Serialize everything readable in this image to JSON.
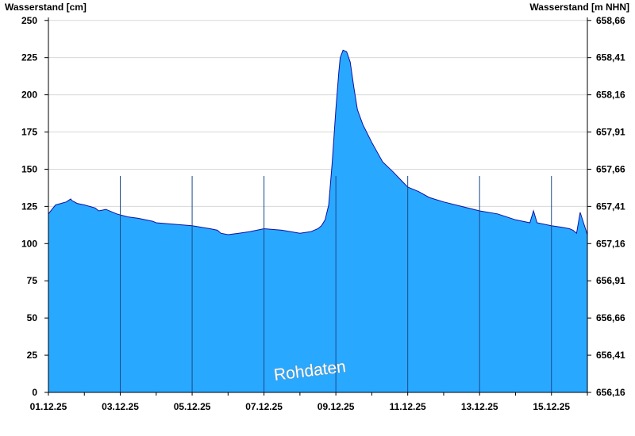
{
  "chart_data": {
    "type": "area",
    "ylabel_left": "Wasserstand [cm]",
    "ylabel_right": "Wasserstand [m NHN]",
    "watermark": "Rohdaten",
    "ylim": [
      0,
      252
    ],
    "y_ticks_left": [
      "0",
      "25",
      "50",
      "75",
      "100",
      "125",
      "150",
      "175",
      "200",
      "225",
      "250"
    ],
    "y_ticks_right": [
      "656,16",
      "656,41",
      "656,66",
      "656,91",
      "657,16",
      "657,41",
      "657,66",
      "657,91",
      "658,16",
      "658,41",
      "658,66"
    ],
    "x_range_days": [
      0,
      15
    ],
    "x_ticks": [
      "01.12.25",
      "03.12.25",
      "05.12.25",
      "07.12.25",
      "09.12.25",
      "11.12.25",
      "13.12.25",
      "15.12.25"
    ],
    "grid": true,
    "colors": {
      "fill": "#29a8ff",
      "line": "#1010a0",
      "grid": "#d8d8d8",
      "gridline_vertical": "#1a4a8a"
    },
    "series": [
      {
        "x": [
          0,
          0.1,
          0.2,
          0.35,
          0.5,
          0.65,
          0.62,
          0.8,
          1.0,
          1.3,
          1.6,
          1.4,
          1.9,
          2.2,
          2.5,
          2.9,
          3.0,
          3.5,
          4.0,
          4.5,
          4.7,
          4.8,
          5.0,
          5.3,
          5.6,
          6.0,
          6.5,
          7.0,
          7.3,
          7.5,
          7.6,
          7.7,
          7.8,
          7.9,
          8.0,
          8.08,
          8.12,
          8.2,
          8.3,
          8.4,
          8.5,
          8.6,
          8.75,
          9.0,
          9.3,
          9.6,
          9.8,
          10.0,
          10.3,
          10.6,
          11.0,
          11.5,
          12.0,
          12.5,
          13.0,
          13.4,
          13.5,
          13.6,
          14.0,
          14.3,
          14.5,
          14.6,
          14.7,
          14.8,
          15.0
        ],
        "y": [
          120,
          123,
          126,
          127,
          128,
          129,
          130,
          127,
          126,
          124,
          123,
          122,
          120,
          118,
          117,
          115,
          114,
          113,
          112,
          110,
          109,
          107,
          106,
          107,
          108,
          110,
          109,
          107,
          108,
          110,
          112,
          116,
          126,
          155,
          190,
          215,
          225,
          230,
          229,
          222,
          205,
          190,
          180,
          168,
          155,
          148,
          143,
          138,
          135,
          131,
          128,
          125,
          122,
          120,
          116,
          114,
          122,
          114,
          112,
          111,
          110,
          109,
          107,
          121,
          106
        ]
      }
    ]
  }
}
